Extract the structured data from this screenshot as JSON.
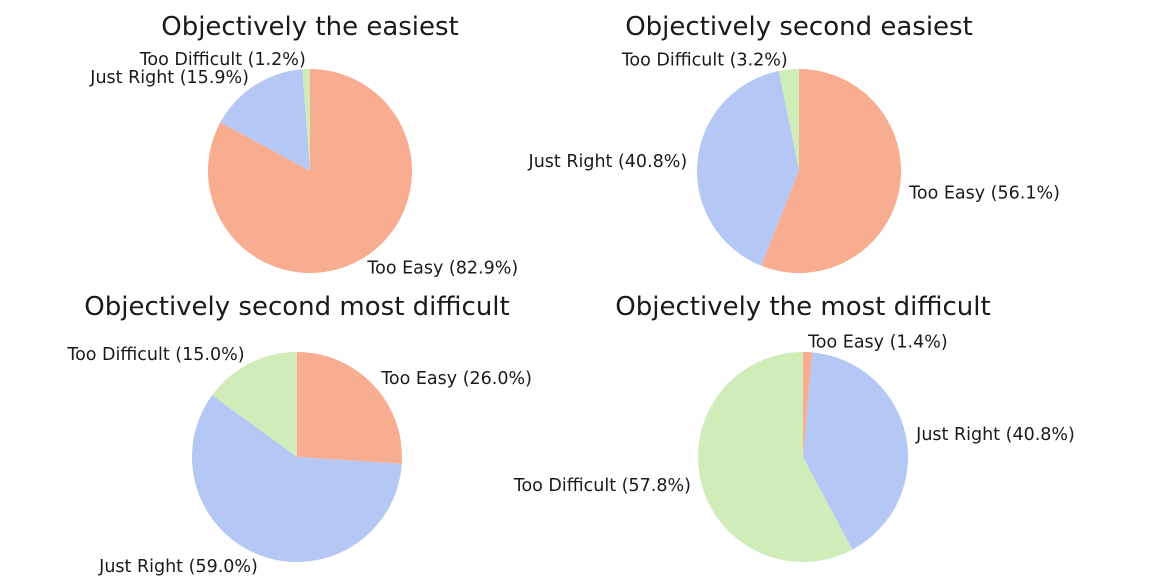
{
  "colors": {
    "Too Easy": "#f9ad90",
    "Just Right": "#b4c7f5",
    "Too Difficult": "#d0ecb8"
  },
  "chart_data": [
    {
      "type": "pie",
      "title": "Objectively the easiest",
      "slices": [
        {
          "label": "Too Difficult",
          "value": 1.2,
          "text": "Too Difficult (1.2%)"
        },
        {
          "label": "Just Right",
          "value": 15.9,
          "text": "Just Right (15.9%)"
        },
        {
          "label": "Too Easy",
          "value": 82.9,
          "text": "Too Easy (82.9%)"
        }
      ]
    },
    {
      "type": "pie",
      "title": "Objectively second easiest",
      "slices": [
        {
          "label": "Too Difficult",
          "value": 3.2,
          "text": "Too Difficult (3.2%)"
        },
        {
          "label": "Just Right",
          "value": 40.8,
          "text": "Just Right (40.8%)"
        },
        {
          "label": "Too Easy",
          "value": 56.1,
          "text": "Too Easy (56.1%)"
        }
      ]
    },
    {
      "type": "pie",
      "title": "Objectively second most difficult",
      "slices": [
        {
          "label": "Too Difficult",
          "value": 15.0,
          "text": "Too Difficult (15.0%)"
        },
        {
          "label": "Just Right",
          "value": 59.0,
          "text": "Just Right (59.0%)"
        },
        {
          "label": "Too Easy",
          "value": 26.0,
          "text": "Too Easy (26.0%)"
        }
      ]
    },
    {
      "type": "pie",
      "title": "Objectively the most difficult",
      "slices": [
        {
          "label": "Too Difficult",
          "value": 57.8,
          "text": "Too Difficult (57.8%)"
        },
        {
          "label": "Just Right",
          "value": 40.8,
          "text": "Just Right (40.8%)"
        },
        {
          "label": "Too Easy",
          "value": 1.4,
          "text": "Too Easy (1.4%)"
        }
      ]
    }
  ]
}
